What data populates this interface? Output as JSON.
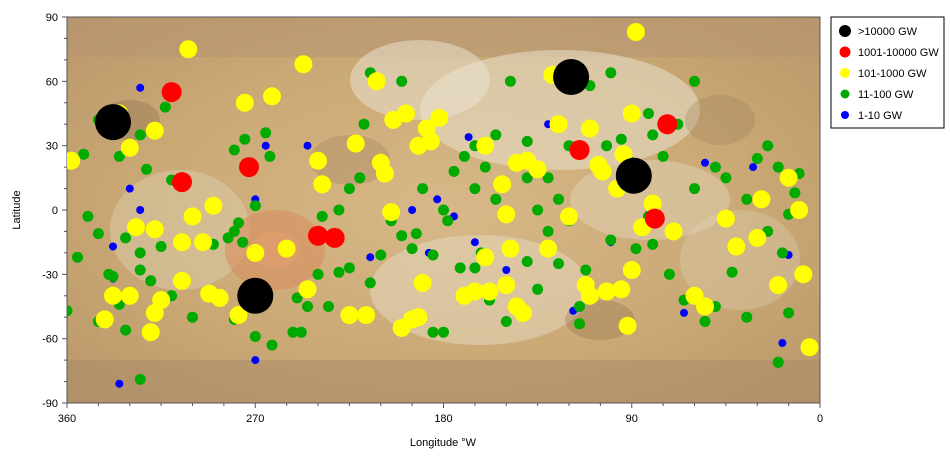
{
  "chart_data": {
    "type": "scatter",
    "title": "",
    "xlabel": "Longitude °W",
    "ylabel": "Latitude",
    "xlim": [
      360,
      0
    ],
    "ylim": [
      -90,
      90
    ],
    "x_ticks": [
      360,
      270,
      180,
      90,
      0
    ],
    "y_ticks": [
      90,
      60,
      30,
      0,
      -30,
      -60,
      -90
    ],
    "grid": false,
    "background": "Io surface map",
    "legend_position": "top-right",
    "series": [
      {
        "name": ">10000 GW",
        "color": "#000000",
        "points": [
          [
            338,
            41
          ],
          [
            119,
            62
          ],
          [
            89,
            16
          ],
          [
            270,
            -40
          ]
        ]
      },
      {
        "name": "1001-10000 GW",
        "color": "#ff0000",
        "points": [
          [
            310,
            55
          ],
          [
            273,
            20
          ],
          [
            305,
            13
          ],
          [
            240,
            -12
          ],
          [
            232,
            -13
          ],
          [
            115,
            28
          ],
          [
            91,
            15
          ],
          [
            73,
            40
          ],
          [
            79,
            -4
          ]
        ]
      },
      {
        "name": "101-1000 GW",
        "color": "#ffff00",
        "points": [
          [
            335,
            45
          ],
          [
            358,
            23
          ],
          [
            330,
            29
          ],
          [
            318,
            37
          ],
          [
            302,
            75
          ],
          [
            275,
            50
          ],
          [
            262,
            53
          ],
          [
            247,
            68
          ],
          [
            290,
            2
          ],
          [
            300,
            -3
          ],
          [
            327,
            -8
          ],
          [
            318,
            -9
          ],
          [
            305,
            -15
          ],
          [
            295,
            -15
          ],
          [
            270,
            -20
          ],
          [
            255,
            -18
          ],
          [
            240,
            23
          ],
          [
            238,
            12
          ],
          [
            222,
            31
          ],
          [
            210,
            22
          ],
          [
            208,
            17
          ],
          [
            205,
            -1
          ],
          [
            212,
            60
          ],
          [
            198,
            45
          ],
          [
            204,
            42
          ],
          [
            188,
            38
          ],
          [
            192,
            30
          ],
          [
            186,
            32
          ],
          [
            182,
            43
          ],
          [
            160,
            30
          ],
          [
            152,
            12
          ],
          [
            145,
            22
          ],
          [
            140,
            23
          ],
          [
            135,
            19
          ],
          [
            125,
            40
          ],
          [
            110,
            38
          ],
          [
            106,
            21
          ],
          [
            104,
            18
          ],
          [
            97,
            10
          ],
          [
            94,
            26
          ],
          [
            90,
            45
          ],
          [
            88,
            83
          ],
          [
            128,
            63
          ],
          [
            150,
            -2
          ],
          [
            148,
            -18
          ],
          [
            160,
            -22
          ],
          [
            158,
            -38
          ],
          [
            150,
            -35
          ],
          [
            145,
            -45
          ],
          [
            142,
            -48
          ],
          [
            130,
            -18
          ],
          [
            120,
            -3
          ],
          [
            112,
            -35
          ],
          [
            110,
            -40
          ],
          [
            102,
            -38
          ],
          [
            95,
            -37
          ],
          [
            92,
            -54
          ],
          [
            90,
            -28
          ],
          [
            85,
            -8
          ],
          [
            80,
            3
          ],
          [
            70,
            -10
          ],
          [
            60,
            -40
          ],
          [
            55,
            -45
          ],
          [
            45,
            -4
          ],
          [
            40,
            -17
          ],
          [
            30,
            -13
          ],
          [
            28,
            5
          ],
          [
            20,
            -35
          ],
          [
            15,
            15
          ],
          [
            10,
            0
          ],
          [
            8,
            -30
          ],
          [
            5,
            -64
          ],
          [
            338,
            -40
          ],
          [
            342,
            -51
          ],
          [
            330,
            -40
          ],
          [
            318,
            -48
          ],
          [
            320,
            -57
          ],
          [
            315,
            -42
          ],
          [
            305,
            -33
          ],
          [
            292,
            -39
          ],
          [
            287,
            -41
          ],
          [
            278,
            -49
          ],
          [
            245,
            -37
          ],
          [
            225,
            -49
          ],
          [
            217,
            -49
          ],
          [
            200,
            -55
          ],
          [
            195,
            -51
          ],
          [
            192,
            -50
          ],
          [
            190,
            -34
          ],
          [
            170,
            -40
          ],
          [
            165,
            -38
          ]
        ]
      },
      {
        "name": "11-100 GW",
        "color": "#00aa00",
        "points": [
          [
            345,
            42
          ],
          [
            352,
            26
          ],
          [
            340,
            36
          ],
          [
            335,
            25
          ],
          [
            325,
            35
          ],
          [
            322,
            19
          ],
          [
            313,
            48
          ],
          [
            310,
            14
          ],
          [
            305,
            15
          ],
          [
            280,
            28
          ],
          [
            275,
            33
          ],
          [
            265,
            36
          ],
          [
            263,
            25
          ],
          [
            270,
            2
          ],
          [
            280,
            -10
          ],
          [
            278,
            -6
          ],
          [
            290,
            -16
          ],
          [
            283,
            -13
          ],
          [
            276,
            -15
          ],
          [
            350,
            -3
          ],
          [
            345,
            -11
          ],
          [
            355,
            -22
          ],
          [
            340,
            -30
          ],
          [
            338,
            -31
          ],
          [
            332,
            -13
          ],
          [
            325,
            -20
          ],
          [
            325,
            -28
          ],
          [
            315,
            -17
          ],
          [
            320,
            -33
          ],
          [
            300,
            -50
          ],
          [
            310,
            -40
          ],
          [
            335,
            -44
          ],
          [
            345,
            -52
          ],
          [
            332,
            -56
          ],
          [
            360,
            -47
          ],
          [
            325,
            -79
          ],
          [
            280,
            -51
          ],
          [
            270,
            -59
          ],
          [
            262,
            -63
          ],
          [
            252,
            -57
          ],
          [
            250,
            -41
          ],
          [
            240,
            -30
          ],
          [
            230,
            -29
          ],
          [
            235,
            -45
          ],
          [
            225,
            -27
          ],
          [
            215,
            -34
          ],
          [
            210,
            -21
          ],
          [
            200,
            -12
          ],
          [
            193,
            -11
          ],
          [
            185,
            -21
          ],
          [
            178,
            -5
          ],
          [
            172,
            -27
          ],
          [
            162,
            -20
          ],
          [
            165,
            -27
          ],
          [
            158,
            -42
          ],
          [
            150,
            -52
          ],
          [
            140,
            -24
          ],
          [
            135,
            -37
          ],
          [
            125,
            -25
          ],
          [
            120,
            -5
          ],
          [
            112,
            -28
          ],
          [
            115,
            -53
          ],
          [
            100,
            -14
          ],
          [
            88,
            -18
          ],
          [
            80,
            -16
          ],
          [
            72,
            -30
          ],
          [
            65,
            -42
          ],
          [
            55,
            -52
          ],
          [
            50,
            -45
          ],
          [
            42,
            -29
          ],
          [
            35,
            -50
          ],
          [
            20,
            -71
          ],
          [
            15,
            -48
          ],
          [
            10,
            17
          ],
          [
            12,
            8
          ],
          [
            15,
            -2
          ],
          [
            20,
            20
          ],
          [
            25,
            30
          ],
          [
            30,
            24
          ],
          [
            50,
            20
          ],
          [
            60,
            10
          ],
          [
            75,
            25
          ],
          [
            80,
            35
          ],
          [
            82,
            45
          ],
          [
            90,
            22
          ],
          [
            95,
            33
          ],
          [
            100,
            64
          ],
          [
            110,
            58
          ],
          [
            120,
            30
          ],
          [
            125,
            5
          ],
          [
            130,
            15
          ],
          [
            135,
            0
          ],
          [
            140,
            15
          ],
          [
            148,
            60
          ],
          [
            155,
            35
          ],
          [
            160,
            20
          ],
          [
            165,
            10
          ],
          [
            170,
            25
          ],
          [
            175,
            18
          ],
          [
            180,
            0
          ],
          [
            190,
            10
          ],
          [
            195,
            -18
          ],
          [
            200,
            60
          ],
          [
            215,
            64
          ],
          [
            218,
            40
          ],
          [
            220,
            15
          ],
          [
            225,
            10
          ],
          [
            230,
            0
          ],
          [
            245,
            -45
          ],
          [
            248,
            -57
          ],
          [
            238,
            -3
          ],
          [
            205,
            -5
          ],
          [
            185,
            -57
          ],
          [
            180,
            -57
          ],
          [
            165,
            30
          ],
          [
            155,
            5
          ],
          [
            140,
            32
          ],
          [
            130,
            -10
          ],
          [
            115,
            -45
          ],
          [
            102,
            30
          ],
          [
            82,
            -3
          ],
          [
            68,
            40
          ],
          [
            60,
            60
          ],
          [
            45,
            15
          ],
          [
            35,
            5
          ],
          [
            25,
            -10
          ],
          [
            18,
            -20
          ]
        ]
      },
      {
        "name": "1-10 GW",
        "color": "#0000ff",
        "points": [
          [
            325,
            57
          ],
          [
            330,
            10
          ],
          [
            325,
            0
          ],
          [
            338,
            -17
          ],
          [
            338,
            -32
          ],
          [
            335,
            -81
          ],
          [
            270,
            5
          ],
          [
            265,
            30
          ],
          [
            245,
            30
          ],
          [
            215,
            -22
          ],
          [
            195,
            0
          ],
          [
            187,
            -20
          ],
          [
            183,
            5
          ],
          [
            175,
            -3
          ],
          [
            168,
            34
          ],
          [
            165,
            -15
          ],
          [
            150,
            -28
          ],
          [
            130,
            40
          ],
          [
            118,
            -47
          ],
          [
            100,
            -15
          ],
          [
            65,
            -48
          ],
          [
            55,
            22
          ],
          [
            32,
            20
          ],
          [
            15,
            -21
          ],
          [
            18,
            -62
          ],
          [
            270,
            -70
          ]
        ]
      }
    ]
  }
}
